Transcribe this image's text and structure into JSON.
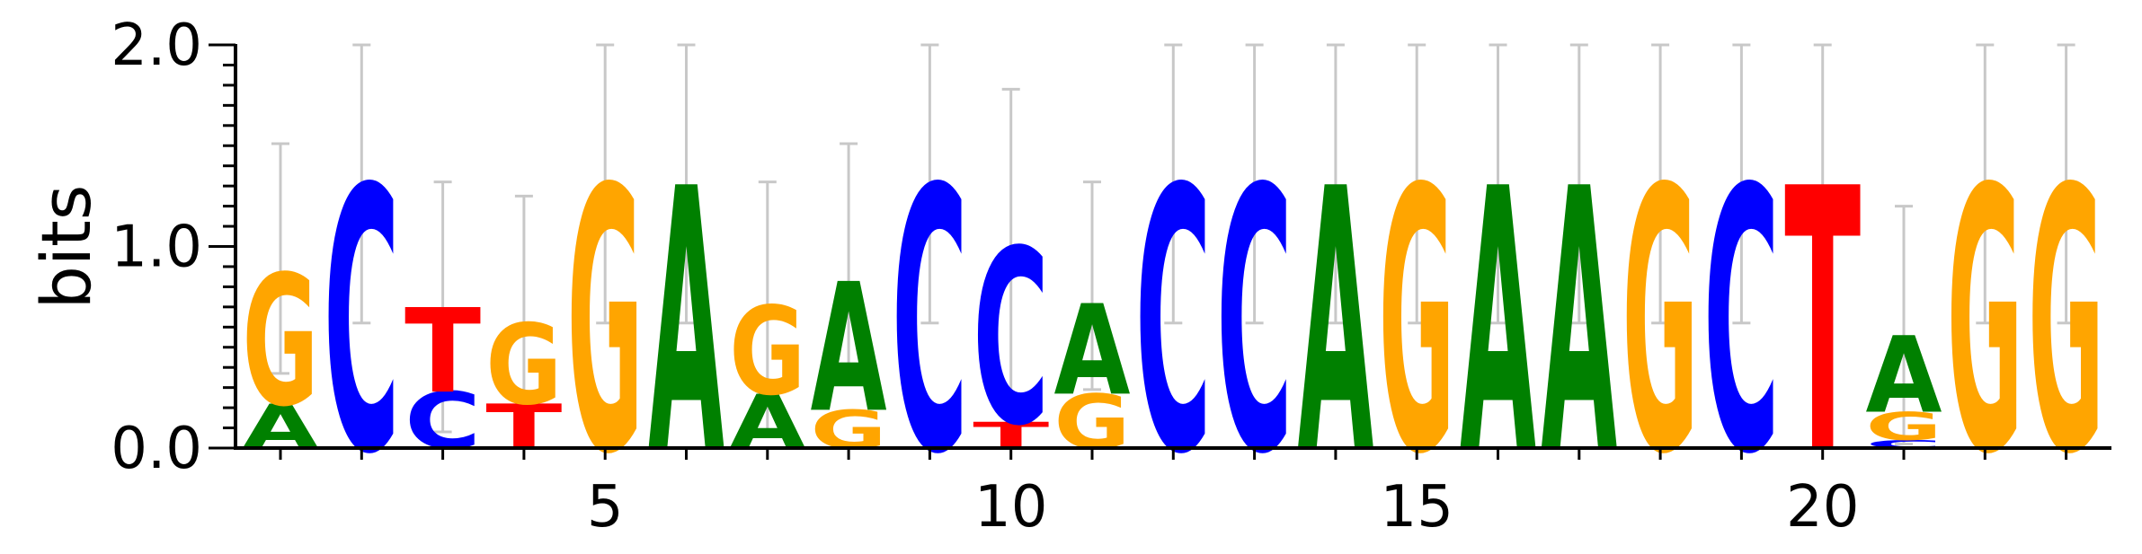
{
  "chart_data": {
    "type": "sequence-logo",
    "ylabel": "bits",
    "ylim": [
      0,
      2.0
    ],
    "yticks": [
      "0.0",
      "1.0",
      "2.0"
    ],
    "xticks": [
      5,
      10,
      15,
      20
    ],
    "positions": [
      1,
      2,
      3,
      4,
      5,
      6,
      7,
      8,
      9,
      10,
      11,
      12,
      13,
      14,
      15,
      16,
      17,
      18,
      19,
      20,
      21,
      22,
      23
    ],
    "colors": {
      "A": "#008000",
      "C": "#0000ff",
      "G": "#ffa500",
      "T": "#ff0000",
      "errorbar": "#c8c8c8"
    },
    "stacks": [
      {
        "pos": 1,
        "letters": [
          [
            "A",
            0.22
          ],
          [
            "G",
            0.65
          ]
        ],
        "error": [
          0.37,
          1.51
        ]
      },
      {
        "pos": 2,
        "letters": [
          [
            "C",
            1.31
          ]
        ],
        "error": [
          0.62,
          2.0
        ]
      },
      {
        "pos": 3,
        "letters": [
          [
            "C",
            0.28
          ],
          [
            "T",
            0.42
          ]
        ],
        "error": [
          0.08,
          1.32
        ]
      },
      {
        "pos": 4,
        "letters": [
          [
            "T",
            0.22
          ],
          [
            "G",
            0.4
          ]
        ],
        "error": [
          0.04,
          1.25
        ]
      },
      {
        "pos": 5,
        "letters": [
          [
            "G",
            1.31
          ]
        ],
        "error": [
          0.62,
          2.0
        ]
      },
      {
        "pos": 6,
        "letters": [
          [
            "A",
            1.31
          ]
        ],
        "error": [
          0.62,
          2.0
        ]
      },
      {
        "pos": 7,
        "letters": [
          [
            "A",
            0.27
          ],
          [
            "G",
            0.44
          ]
        ],
        "error": [
          0.09,
          1.32
        ]
      },
      {
        "pos": 8,
        "letters": [
          [
            "G",
            0.19
          ],
          [
            "A",
            0.64
          ]
        ],
        "error": [
          0.37,
          1.51
        ]
      },
      {
        "pos": 9,
        "letters": [
          [
            "C",
            1.31
          ]
        ],
        "error": [
          0.62,
          2.0
        ]
      },
      {
        "pos": 10,
        "letters": [
          [
            "T",
            0.13
          ],
          [
            "C",
            0.87
          ]
        ],
        "error": [
          0.21,
          1.78
        ]
      },
      {
        "pos": 11,
        "letters": [
          [
            "G",
            0.27
          ],
          [
            "A",
            0.45
          ]
        ],
        "error": [
          0.29,
          1.32
        ]
      },
      {
        "pos": 12,
        "letters": [
          [
            "C",
            1.31
          ]
        ],
        "error": [
          0.62,
          2.0
        ]
      },
      {
        "pos": 13,
        "letters": [
          [
            "C",
            1.31
          ]
        ],
        "error": [
          0.62,
          2.0
        ]
      },
      {
        "pos": 14,
        "letters": [
          [
            "A",
            1.31
          ]
        ],
        "error": [
          0.62,
          2.0
        ]
      },
      {
        "pos": 15,
        "letters": [
          [
            "G",
            1.31
          ]
        ],
        "error": [
          0.62,
          2.0
        ]
      },
      {
        "pos": 16,
        "letters": [
          [
            "A",
            1.31
          ]
        ],
        "error": [
          0.62,
          2.0
        ]
      },
      {
        "pos": 17,
        "letters": [
          [
            "A",
            1.31
          ]
        ],
        "error": [
          0.62,
          2.0
        ]
      },
      {
        "pos": 18,
        "letters": [
          [
            "G",
            1.31
          ]
        ],
        "error": [
          0.62,
          2.0
        ]
      },
      {
        "pos": 19,
        "letters": [
          [
            "C",
            1.31
          ]
        ],
        "error": [
          0.62,
          2.0
        ]
      },
      {
        "pos": 20,
        "letters": [
          [
            "T",
            1.31
          ]
        ],
        "error": [
          0.62,
          2.0
        ]
      },
      {
        "pos": 21,
        "letters": [
          [
            "C",
            0.04
          ],
          [
            "G",
            0.14
          ],
          [
            "A",
            0.38
          ]
        ],
        "error": [
          0.02,
          1.2
        ]
      },
      {
        "pos": 22,
        "letters": [
          [
            "G",
            1.31
          ]
        ],
        "error": [
          0.62,
          2.0
        ]
      },
      {
        "pos": 23,
        "letters": [
          [
            "G",
            1.31
          ]
        ],
        "error": [
          0.62,
          2.0
        ]
      }
    ]
  }
}
